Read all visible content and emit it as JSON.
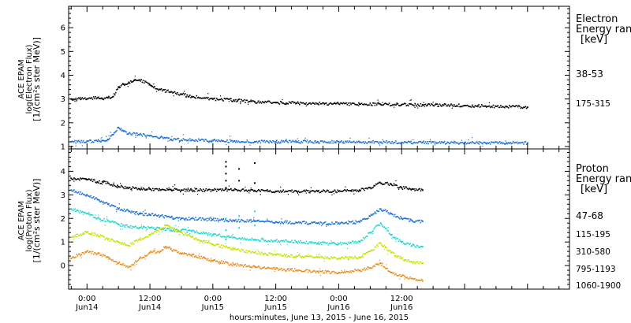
{
  "colors": {
    "black": "#000000",
    "blue": "#1a6fd0",
    "cyan": "#1fd6d0",
    "yellow": "#c8e000",
    "orange": "#e98a1a"
  },
  "chart_data": [
    {
      "type": "scatter",
      "panel": "electron",
      "ylabel": [
        "ACE EPAM",
        "log(Electron Flux)",
        "[1/(cm²s ster MeV)]"
      ],
      "legend_title": [
        "Electron",
        "Energy ran",
        "[keV]"
      ],
      "ylim": [
        0.9,
        6.9
      ],
      "yticks": [
        1,
        2,
        3,
        4,
        5,
        6
      ],
      "series": [
        {
          "name": "38-53",
          "color": "black",
          "x": [
            -3,
            0,
            2,
            3,
            4,
            5,
            6,
            7,
            8,
            9,
            10,
            12,
            14,
            16,
            18,
            20,
            24,
            28,
            32,
            36,
            40,
            44,
            48,
            52,
            56,
            60,
            64,
            68,
            72,
            76,
            80,
            84
          ],
          "y": [
            3.0,
            3.0,
            3.05,
            3.0,
            3.05,
            3.1,
            3.5,
            3.62,
            3.7,
            3.78,
            3.8,
            3.6,
            3.4,
            3.3,
            3.2,
            3.1,
            3.0,
            2.95,
            2.88,
            2.85,
            2.82,
            2.8,
            2.8,
            2.78,
            2.77,
            2.76,
            2.75,
            2.74,
            2.72,
            2.7,
            2.68,
            2.65
          ]
        },
        {
          "name": "175-315",
          "color": "blue",
          "x": [
            -3,
            0,
            2,
            3,
            4,
            5,
            6,
            7,
            8,
            10,
            12,
            14,
            16,
            20,
            24,
            28,
            32,
            36,
            40,
            44,
            48,
            52,
            56,
            60,
            64,
            68,
            72,
            76,
            80,
            84
          ],
          "y": [
            1.2,
            1.22,
            1.22,
            1.25,
            1.3,
            1.5,
            1.8,
            1.65,
            1.55,
            1.5,
            1.45,
            1.38,
            1.3,
            1.28,
            1.25,
            1.22,
            1.2,
            1.2,
            1.2,
            1.2,
            1.2,
            1.18,
            1.18,
            1.17,
            1.17,
            1.16,
            1.16,
            1.15,
            1.15,
            1.15
          ]
        }
      ]
    },
    {
      "type": "scatter",
      "panel": "proton",
      "ylabel": [
        "ACE EPAM",
        "log(Proton Flux)",
        "[1/(cm²s ster MeV)]"
      ],
      "legend_title": [
        "Proton",
        "Energy ran",
        "[keV]"
      ],
      "xlabel": "hours:minutes, June 13, 2015 - June 16, 2015",
      "ylim": [
        -1.0,
        4.95
      ],
      "yticks": [
        0,
        1,
        2,
        3,
        4
      ],
      "xlim": [
        -3.5,
        92
      ],
      "xticks": [
        {
          "x": 0,
          "time": "0:00",
          "date": "Jun14"
        },
        {
          "x": 12,
          "time": "12:00",
          "date": "Jun14"
        },
        {
          "x": 24,
          "time": "0:00",
          "date": "Jun15"
        },
        {
          "x": 36,
          "time": "12:00",
          "date": "Jun15"
        },
        {
          "x": 48,
          "time": "0:00",
          "date": "Jun16"
        },
        {
          "x": 60,
          "time": "12:00",
          "date": "Jun16"
        }
      ],
      "series": [
        {
          "name": "47-68",
          "color": "black",
          "x": [
            -3,
            0,
            2,
            4,
            6,
            8,
            10,
            12,
            14,
            16,
            18,
            20,
            24,
            28,
            32,
            36,
            40,
            44,
            48,
            52,
            54,
            56,
            58,
            60,
            62,
            64
          ],
          "y": [
            3.7,
            3.65,
            3.55,
            3.5,
            3.35,
            3.3,
            3.25,
            3.25,
            3.2,
            3.22,
            3.2,
            3.2,
            3.2,
            3.2,
            3.18,
            3.15,
            3.15,
            3.15,
            3.15,
            3.2,
            3.3,
            3.5,
            3.45,
            3.3,
            3.25,
            3.2
          ]
        },
        {
          "name": "115-195",
          "color": "blue",
          "x": [
            -3,
            0,
            2,
            4,
            6,
            8,
            10,
            12,
            14,
            16,
            18,
            20,
            24,
            28,
            32,
            36,
            40,
            44,
            48,
            52,
            54,
            56,
            58,
            60,
            62,
            64
          ],
          "y": [
            3.2,
            3.0,
            2.8,
            2.6,
            2.4,
            2.3,
            2.2,
            2.15,
            2.1,
            2.05,
            2.0,
            2.0,
            1.95,
            1.9,
            1.88,
            1.85,
            1.82,
            1.8,
            1.8,
            1.85,
            2.1,
            2.4,
            2.2,
            2.0,
            1.9,
            1.88
          ]
        },
        {
          "name": "310-580",
          "color": "cyan",
          "x": [
            -3,
            0,
            2,
            4,
            6,
            8,
            10,
            12,
            14,
            16,
            18,
            20,
            24,
            28,
            32,
            36,
            40,
            44,
            48,
            52,
            54,
            56,
            58,
            60,
            62,
            64
          ],
          "y": [
            2.4,
            2.2,
            2.0,
            1.9,
            1.75,
            1.65,
            1.6,
            1.6,
            1.55,
            1.5,
            1.5,
            1.45,
            1.3,
            1.2,
            1.1,
            1.05,
            1.0,
            0.95,
            0.92,
            1.0,
            1.4,
            1.8,
            1.3,
            1.0,
            0.85,
            0.8
          ]
        },
        {
          "name": "795-1193",
          "color": "yellow",
          "x": [
            -3,
            0,
            2,
            4,
            6,
            8,
            10,
            12,
            14,
            15,
            16,
            18,
            20,
            24,
            28,
            32,
            36,
            40,
            44,
            48,
            52,
            54,
            56,
            58,
            60,
            62,
            64
          ],
          "y": [
            1.2,
            1.4,
            1.3,
            1.1,
            1.0,
            0.85,
            1.1,
            1.3,
            1.55,
            1.7,
            1.6,
            1.4,
            1.2,
            0.9,
            0.7,
            0.55,
            0.45,
            0.4,
            0.35,
            0.3,
            0.35,
            0.6,
            0.95,
            0.55,
            0.3,
            0.15,
            0.1
          ]
        },
        {
          "name": "1060-1900",
          "color": "orange",
          "x": [
            -3,
            0,
            2,
            4,
            6,
            8,
            10,
            12,
            14,
            15,
            16,
            18,
            20,
            24,
            28,
            32,
            36,
            40,
            44,
            48,
            52,
            54,
            56,
            58,
            60,
            62,
            64
          ],
          "y": [
            0.3,
            0.6,
            0.5,
            0.35,
            0.1,
            -0.05,
            0.3,
            0.55,
            0.6,
            0.8,
            0.7,
            0.5,
            0.45,
            0.2,
            0.05,
            -0.05,
            -0.15,
            -0.2,
            -0.25,
            -0.3,
            -0.2,
            -0.1,
            0.1,
            -0.3,
            -0.45,
            -0.55,
            -0.65
          ]
        }
      ],
      "spikes": [
        {
          "x": 26.5,
          "y": [
            3.3,
            3.6,
            3.9,
            4.2,
            4.4,
            2.0,
            1.5,
            1.1
          ]
        },
        {
          "x": 29.0,
          "y": [
            3.6,
            4.1,
            2.1,
            1.6
          ]
        },
        {
          "x": 32.0,
          "y": [
            3.5,
            4.35,
            2.3,
            1.7
          ]
        }
      ]
    }
  ]
}
